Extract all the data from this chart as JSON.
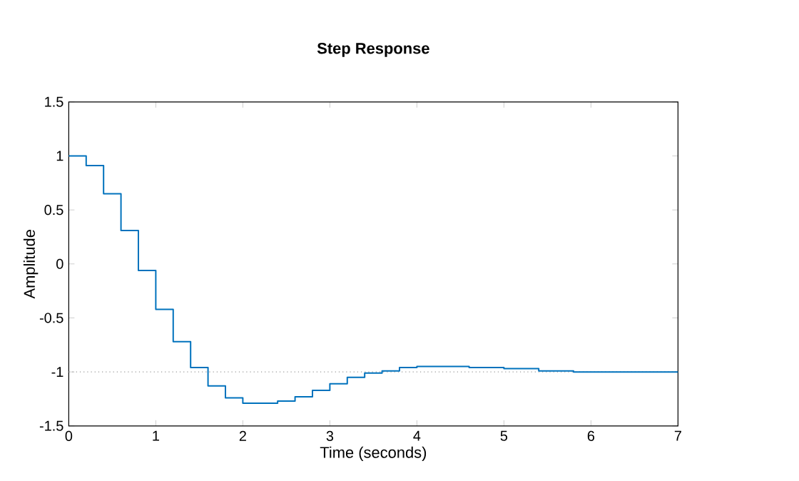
{
  "chart_data": {
    "type": "step",
    "title": "Step Response",
    "xlabel": "Time (seconds)",
    "ylabel": "Amplitude",
    "x": [
      0,
      0.2,
      0.4,
      0.6,
      0.8,
      1.0,
      1.2,
      1.4,
      1.6,
      1.8,
      2.0,
      2.2,
      2.4,
      2.6,
      2.8,
      3.0,
      3.2,
      3.4,
      3.6,
      3.8,
      4.0,
      4.2,
      4.4,
      4.6,
      4.8,
      5.0,
      5.2,
      5.4,
      5.6,
      5.8,
      7
    ],
    "series": [
      {
        "color": "#0072bd",
        "values": [
          1.0,
          0.91,
          0.65,
          0.31,
          -0.06,
          -0.42,
          -0.72,
          -0.96,
          -1.13,
          -1.24,
          -1.29,
          -1.29,
          -1.27,
          -1.23,
          -1.17,
          -1.11,
          -1.05,
          -1.01,
          -0.99,
          -0.96,
          -0.95,
          -0.95,
          -0.95,
          -0.96,
          -0.96,
          -0.97,
          -0.97,
          -0.99,
          -0.99,
          -1.0,
          -1.0
        ]
      }
    ],
    "xlim": [
      0,
      7
    ],
    "ylim": [
      -1.5,
      1.5
    ],
    "xticks": [
      0,
      1,
      2,
      3,
      4,
      5,
      6,
      7
    ],
    "yticks": [
      -1.5,
      -1,
      -0.5,
      0,
      0.5,
      1,
      1.5
    ],
    "ref_lines": [
      {
        "axis": "y",
        "value": -1,
        "color": "#999999",
        "line_style": "dotted"
      }
    ],
    "marker": "none",
    "line_style": "solid"
  }
}
